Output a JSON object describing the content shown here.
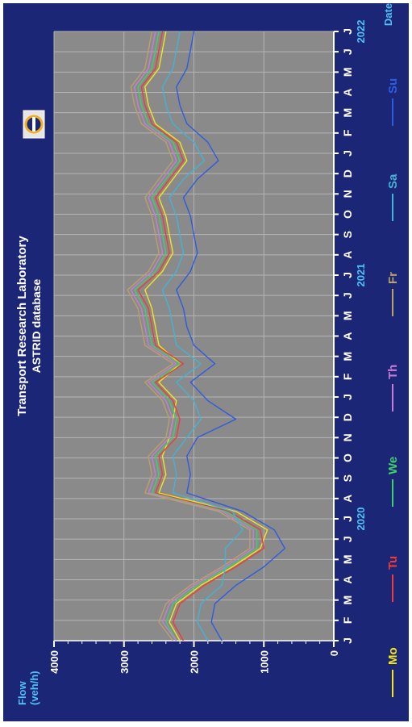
{
  "colors": {
    "background": "#1c2676",
    "plot_area": "#8a8a8a",
    "grid": "#b4b4b4",
    "axis_text": "#ffffff",
    "axis_title": "#4fc3f7",
    "year_label": "#4fc3f7",
    "Mo": "#f5e417",
    "Tu": "#ef3b3b",
    "We": "#3fd06b",
    "Th": "#c77dd8",
    "Fr": "#b9a16a",
    "Sa": "#43b3d8",
    "Su": "#2f5be0"
  },
  "chart_data": {
    "type": "line",
    "title": "Transport Research Laboratory",
    "subtitle": "ASTRID database",
    "ylabel": "Flow\n(veh/h)",
    "xlabel": "Date",
    "ylim": [
      0,
      4000
    ],
    "yticks": [
      0,
      1000,
      2000,
      3000,
      4000
    ],
    "x_month_labels": [
      "J",
      "F",
      "M",
      "A",
      "M",
      "J",
      "J",
      "A",
      "S",
      "O",
      "N",
      "D",
      "J",
      "F",
      "M",
      "A",
      "M",
      "J",
      "J",
      "A",
      "S",
      "O",
      "N",
      "D",
      "J",
      "F",
      "M",
      "A",
      "M",
      "J",
      "J"
    ],
    "x_month_start": "2020-01",
    "year_labels": [
      {
        "label": "2020",
        "month_index": 6
      },
      {
        "label": "2021",
        "month_index": 18
      },
      {
        "label": "2022",
        "month_index": 30
      }
    ],
    "grid": true,
    "legend_position": "bottom",
    "legend": [
      "Mo",
      "Tu",
      "We",
      "Th",
      "Fr",
      "Sa",
      "Su"
    ],
    "x_weeks": [
      0,
      4,
      8,
      12,
      16,
      20,
      24,
      28,
      32,
      36,
      40,
      44,
      48,
      52,
      56,
      60,
      64,
      68,
      72,
      76,
      80,
      84,
      88,
      92,
      96,
      100,
      104,
      108,
      112,
      116,
      120,
      124,
      128,
      132
    ],
    "series": [
      {
        "name": "Mo",
        "values": [
          2200,
          2350,
          2250,
          1900,
          1450,
          1050,
          950,
          1400,
          2500,
          2400,
          2450,
          2350,
          2300,
          2250,
          2500,
          2200,
          2500,
          2550,
          2600,
          2700,
          2450,
          2300,
          2350,
          2400,
          2500,
          2300,
          2100,
          2200,
          2550,
          2650,
          2700,
          2500,
          2450,
          2400
        ]
      },
      {
        "name": "Tu",
        "values": [
          2150,
          2300,
          2200,
          1850,
          1400,
          1000,
          1050,
          1500,
          2550,
          2450,
          2500,
          2250,
          2200,
          2300,
          2550,
          2150,
          2550,
          2600,
          2650,
          2800,
          2500,
          2350,
          2400,
          2450,
          2550,
          2350,
          2150,
          2250,
          2600,
          2700,
          2750,
          2550,
          2500,
          2450
        ]
      },
      {
        "name": "We",
        "values": [
          2250,
          2400,
          2300,
          1950,
          1500,
          1100,
          1100,
          1550,
          2600,
          2500,
          2550,
          2300,
          2250,
          2350,
          2600,
          2200,
          2600,
          2650,
          2700,
          2850,
          2550,
          2400,
          2450,
          2500,
          2600,
          2400,
          2200,
          2300,
          2650,
          2750,
          2800,
          2600,
          2550,
          2500
        ]
      },
      {
        "name": "Th",
        "values": [
          2250,
          2450,
          2350,
          2000,
          1550,
          1150,
          1150,
          1600,
          2650,
          2550,
          2600,
          2350,
          2300,
          2400,
          2650,
          2250,
          2650,
          2700,
          2750,
          2900,
          2600,
          2450,
          2500,
          2550,
          2650,
          2450,
          2250,
          2350,
          2700,
          2800,
          2850,
          2650,
          2600,
          2550
        ]
      },
      {
        "name": "Fr",
        "values": [
          2300,
          2500,
          2400,
          2050,
          1600,
          1200,
          1200,
          1650,
          2700,
          2600,
          2650,
          2400,
          2350,
          2450,
          2700,
          2300,
          2700,
          2750,
          2800,
          2950,
          2650,
          2500,
          2550,
          2600,
          2700,
          2500,
          2300,
          2400,
          2750,
          2850,
          2900,
          2700,
          2650,
          2600
        ]
      },
      {
        "name": "Sa",
        "values": [
          1800,
          1950,
          1900,
          1600,
          1550,
          1550,
          1300,
          1450,
          2300,
          2250,
          2300,
          2100,
          1900,
          2000,
          2250,
          1900,
          2250,
          2300,
          2350,
          2450,
          2250,
          2150,
          2200,
          2250,
          2350,
          2150,
          1850,
          2000,
          2300,
          2400,
          2450,
          2300,
          2250,
          2200
        ]
      },
      {
        "name": "Su",
        "values": [
          1600,
          1750,
          1700,
          1400,
          1000,
          700,
          850,
          1300,
          2100,
          2050,
          2100,
          1950,
          1400,
          1800,
          2050,
          1700,
          2000,
          2100,
          2150,
          2250,
          2050,
          1950,
          2000,
          2050,
          2150,
          1950,
          1650,
          1800,
          2100,
          2200,
          2250,
          2100,
          2050,
          2000
        ]
      }
    ]
  }
}
